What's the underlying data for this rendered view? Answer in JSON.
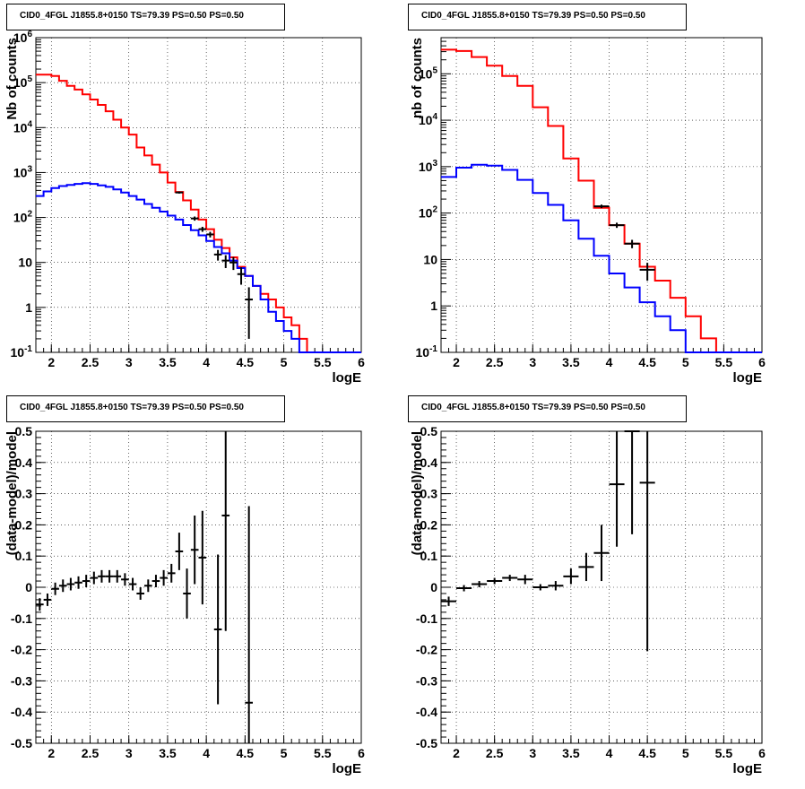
{
  "chart_data": [
    {
      "type": "line",
      "subtype": "histogram",
      "title": "CID0_4FGL J1855.8+0150 TS=79.39 PS=0.50 PS=0.50",
      "xlabel": "logE",
      "ylabel": "Nb of counts",
      "xlim": [
        1.8,
        6.0
      ],
      "ylim": [
        0.1,
        1000000
      ],
      "yscale": "log",
      "grid": true,
      "xticks": [
        "2",
        "2.5",
        "3",
        "3.5",
        "4",
        "4.5",
        "5",
        "5.5",
        "6"
      ],
      "ytick_labels": [
        "10^-1",
        "1",
        "10",
        "10^2",
        "10^3",
        "10^4",
        "10^5",
        "10^6"
      ],
      "bin_edges": [
        1.8,
        1.9,
        2.0,
        2.1,
        2.2,
        2.3,
        2.4,
        2.5,
        2.6,
        2.7,
        2.8,
        2.9,
        3.0,
        3.1,
        3.2,
        3.3,
        3.4,
        3.5,
        3.6,
        3.7,
        3.8,
        3.9,
        4.0,
        4.1,
        4.2,
        4.3,
        4.4,
        4.5,
        4.6,
        4.7,
        4.8,
        4.9,
        5.0,
        5.1,
        5.2,
        5.3,
        5.4,
        5.5,
        5.6,
        5.7,
        5.8,
        5.9,
        6.0
      ],
      "series": [
        {
          "color": "#ff0000",
          "values": [
            150000,
            150000,
            140000,
            110000,
            85000,
            70000,
            55000,
            42000,
            32000,
            23000,
            15000,
            10000,
            7000,
            3600,
            2400,
            1500,
            1000,
            600,
            370,
            240,
            150,
            90,
            55,
            32,
            21,
            13,
            8,
            5,
            3,
            2,
            1.5,
            1,
            0.6,
            0.4,
            0.2,
            0.1,
            0.1,
            0.1,
            0.1,
            0.1,
            0.1,
            0.1
          ]
        },
        {
          "color": "#0000ff",
          "values": [
            300,
            380,
            450,
            500,
            530,
            560,
            580,
            560,
            520,
            480,
            420,
            360,
            300,
            250,
            200,
            165,
            135,
            110,
            90,
            68,
            52,
            40,
            30,
            22,
            16,
            11,
            7.5,
            5,
            3,
            1.5,
            0.8,
            0.5,
            0.3,
            0.2,
            0.1,
            0.1,
            0.1,
            0.1,
            0.1,
            0.1,
            0.1,
            0.1
          ]
        },
        {
          "color": "#000000",
          "points": [
            [
              3.65,
              360,
              0.05,
              20
            ],
            [
              3.85,
              95,
              0.05,
              10
            ],
            [
              3.95,
              55,
              0.05,
              7
            ],
            [
              4.05,
              42,
              0.05,
              6
            ],
            [
              4.15,
              15,
              0.05,
              4
            ],
            [
              4.25,
              11,
              0.05,
              3.5
            ],
            [
              4.35,
              10,
              0.05,
              3.2
            ],
            [
              4.45,
              5.5,
              0.05,
              2.3
            ],
            [
              4.55,
              1.5,
              0.05,
              1.3
            ]
          ]
        }
      ]
    },
    {
      "type": "line",
      "subtype": "histogram",
      "title": "CID0_4FGL J1855.8+0150 TS=79.39 PS=0.50 PS=0.50",
      "xlabel": "logE",
      "ylabel": "nb of counts",
      "xlim": [
        1.8,
        6.0
      ],
      "ylim": [
        0.1,
        600000
      ],
      "yscale": "log",
      "grid": true,
      "xticks": [
        "2",
        "2.5",
        "3",
        "3.5",
        "4",
        "4.5",
        "5",
        "5.5",
        "6"
      ],
      "ytick_labels": [
        "10^-1",
        "1",
        "10",
        "10^2",
        "10^3",
        "10^4",
        "10^5"
      ],
      "bin_edges": [
        1.8,
        2.0,
        2.2,
        2.4,
        2.6,
        2.8,
        3.0,
        3.2,
        3.4,
        3.6,
        3.8,
        4.0,
        4.2,
        4.4,
        4.6,
        4.8,
        5.0,
        5.2,
        5.4,
        5.6,
        5.8,
        6.0
      ],
      "series": [
        {
          "color": "#ff0000",
          "values": [
            330000,
            310000,
            230000,
            150000,
            90000,
            55000,
            19000,
            7500,
            1500,
            500,
            130,
            55,
            22,
            7,
            3.5,
            1.5,
            0.6,
            0.2,
            0.1,
            0.1,
            0.1
          ]
        },
        {
          "color": "#0000ff",
          "values": [
            600,
            950,
            1100,
            1050,
            850,
            520,
            270,
            150,
            70,
            28,
            12,
            5,
            2.5,
            1.2,
            0.6,
            0.3,
            0.1,
            0.1,
            0.1,
            0.1,
            0.1
          ]
        },
        {
          "color": "#000000",
          "points": [
            [
              3.9,
              140,
              0.1,
              12
            ],
            [
              4.1,
              55,
              0.1,
              7
            ],
            [
              4.3,
              22,
              0.1,
              4.5
            ],
            [
              4.5,
              6,
              0.1,
              2.5
            ]
          ]
        }
      ]
    },
    {
      "type": "scatter",
      "title": "CID0_4FGL J1855.8+0150 TS=79.39 PS=0.50 PS=0.50",
      "xlabel": "logE",
      "ylabel": "(data-model)/model",
      "xlim": [
        1.8,
        6.0
      ],
      "ylim": [
        -0.5,
        0.5
      ],
      "grid": true,
      "xticks": [
        "2",
        "2.5",
        "3",
        "3.5",
        "4",
        "4.5",
        "5",
        "5.5",
        "6"
      ],
      "yticks": [
        "-0.5",
        "-0.4",
        "-0.3",
        "-0.2",
        "-0.1",
        "0",
        "0.1",
        "0.2",
        "0.3",
        "0.4",
        "0.5"
      ],
      "series": [
        {
          "color": "#000000",
          "points": [
            [
              1.85,
              -0.055,
              0.05,
              0.02
            ],
            [
              1.95,
              -0.04,
              0.05,
              0.02
            ],
            [
              2.05,
              -0.005,
              0.05,
              0.02
            ],
            [
              2.15,
              0.005,
              0.05,
              0.02
            ],
            [
              2.25,
              0.01,
              0.05,
              0.02
            ],
            [
              2.35,
              0.015,
              0.05,
              0.02
            ],
            [
              2.45,
              0.02,
              0.05,
              0.02
            ],
            [
              2.55,
              0.03,
              0.05,
              0.02
            ],
            [
              2.65,
              0.035,
              0.05,
              0.02
            ],
            [
              2.75,
              0.035,
              0.05,
              0.02
            ],
            [
              2.85,
              0.035,
              0.05,
              0.02
            ],
            [
              2.95,
              0.025,
              0.05,
              0.02
            ],
            [
              3.05,
              0.01,
              0.05,
              0.02
            ],
            [
              3.15,
              -0.02,
              0.05,
              0.02
            ],
            [
              3.25,
              0.005,
              0.05,
              0.02
            ],
            [
              3.35,
              0.02,
              0.05,
              0.02
            ],
            [
              3.45,
              0.03,
              0.05,
              0.025
            ],
            [
              3.55,
              0.045,
              0.05,
              0.03
            ],
            [
              3.65,
              0.115,
              0.05,
              0.06
            ],
            [
              3.75,
              -0.02,
              0.05,
              0.08
            ],
            [
              3.85,
              0.12,
              0.05,
              0.11
            ],
            [
              3.95,
              0.095,
              0.05,
              0.15
            ],
            [
              4.15,
              -0.135,
              0.05,
              0.24
            ],
            [
              4.25,
              0.23,
              0.05,
              0.37
            ],
            [
              4.55,
              -0.37,
              0.05,
              0.63
            ]
          ]
        }
      ]
    },
    {
      "type": "scatter",
      "title": "CID0_4FGL J1855.8+0150 TS=79.39 PS=0.50 PS=0.50",
      "xlabel": "logE",
      "ylabel": "(data-model)/model",
      "xlim": [
        1.8,
        6.0
      ],
      "ylim": [
        -0.5,
        0.5
      ],
      "grid": true,
      "xticks": [
        "2",
        "2.5",
        "3",
        "3.5",
        "4",
        "4.5",
        "5",
        "5.5",
        "6"
      ],
      "yticks": [
        "-0.5",
        "-0.4",
        "-0.3",
        "-0.2",
        "-0.1",
        "0",
        "0.1",
        "0.2",
        "0.3",
        "0.4",
        "0.5"
      ],
      "series": [
        {
          "color": "#000000",
          "points": [
            [
              1.9,
              -0.045,
              0.1,
              0.015
            ],
            [
              2.1,
              -0.003,
              0.1,
              0.01
            ],
            [
              2.3,
              0.01,
              0.1,
              0.01
            ],
            [
              2.5,
              0.02,
              0.1,
              0.01
            ],
            [
              2.7,
              0.03,
              0.1,
              0.01
            ],
            [
              2.9,
              0.025,
              0.1,
              0.015
            ],
            [
              3.1,
              0.0,
              0.1,
              0.01
            ],
            [
              3.3,
              0.005,
              0.1,
              0.015
            ],
            [
              3.5,
              0.035,
              0.1,
              0.025
            ],
            [
              3.7,
              0.065,
              0.1,
              0.045
            ],
            [
              3.9,
              0.11,
              0.1,
              0.09
            ],
            [
              4.1,
              0.33,
              0.1,
              0.2
            ],
            [
              4.3,
              0.5,
              0.1,
              0.33
            ],
            [
              4.5,
              0.335,
              0.1,
              0.54
            ]
          ]
        }
      ]
    }
  ]
}
